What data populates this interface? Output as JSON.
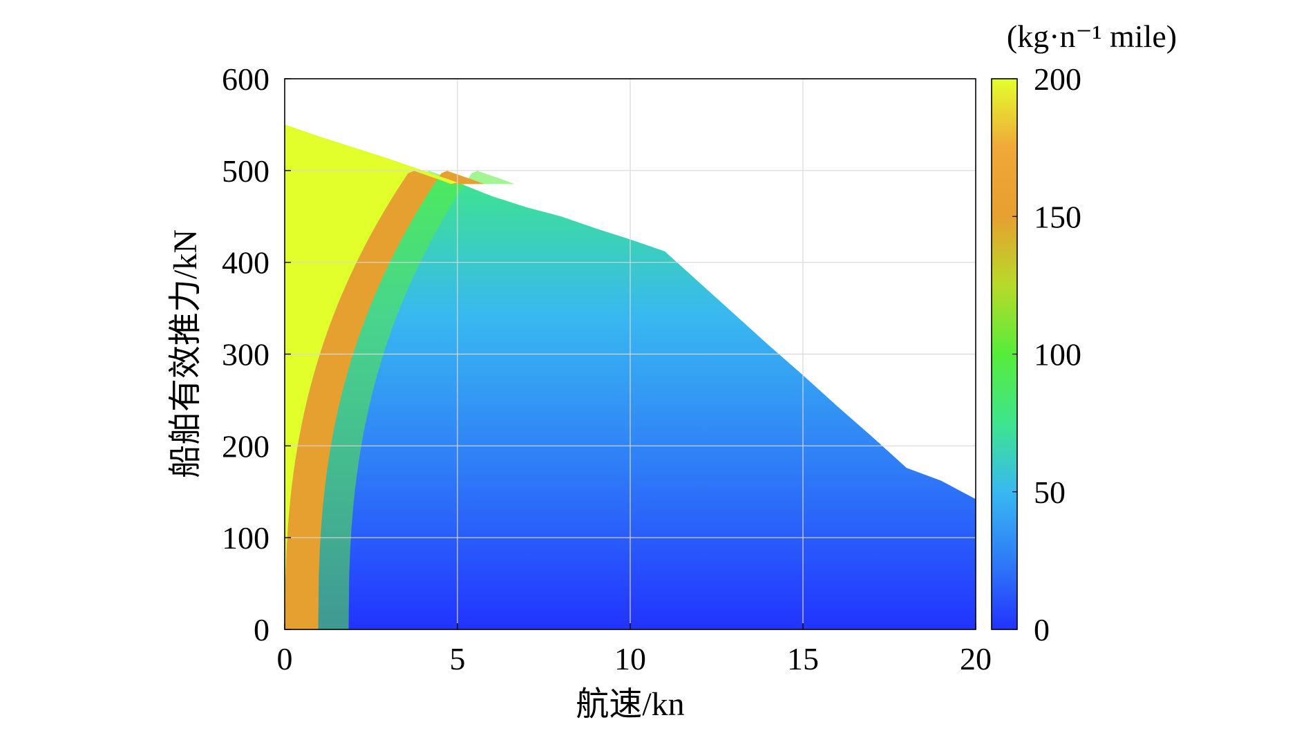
{
  "chart_data": {
    "type": "heatmap",
    "title": "",
    "xlabel": "航速/kn",
    "ylabel": "船舶有效推力/kN",
    "colorbar_label": "(kg·n⁻¹ mile)",
    "xlim": [
      0,
      20
    ],
    "ylim": [
      0,
      600
    ],
    "x_ticks": [
      0,
      5,
      10,
      15,
      20
    ],
    "y_ticks": [
      0,
      100,
      200,
      300,
      400,
      500,
      600
    ],
    "colorbar_range": [
      0,
      200
    ],
    "colorbar_ticks": [
      0,
      50,
      100,
      150,
      200
    ],
    "grid": true,
    "colormap": [
      "#2233ff",
      "#2f7cf7",
      "#38b8f0",
      "#3ee58c",
      "#57ec3a",
      "#b8da2a",
      "#e6a030",
      "#f0a838",
      "#e2ff2c"
    ],
    "upper_boundary": {
      "x": [
        0,
        1,
        2,
        3,
        4,
        5,
        6,
        7,
        8,
        9,
        10,
        11,
        12,
        13,
        14,
        15,
        16,
        17,
        18,
        19,
        20
      ],
      "y": [
        550,
        537,
        525,
        513,
        500,
        487,
        472,
        460,
        450,
        437,
        425,
        412,
        378,
        344,
        310,
        277,
        243,
        210,
        176,
        162,
        142
      ]
    }
  }
}
